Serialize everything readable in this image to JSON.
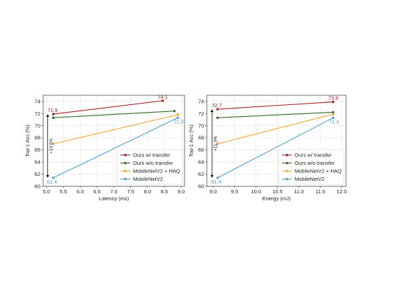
{
  "chart_data": [
    {
      "type": "line",
      "xlabel": "Latency (ms)",
      "ylabel": "Top-1 Acc (%)",
      "xlim": [
        4.9,
        9.1
      ],
      "ylim": [
        60,
        75
      ],
      "xticks": [
        "5.0",
        "5.5",
        "6.0",
        "6.5",
        "7.0",
        "7.5",
        "8.0",
        "8.5",
        "9.0"
      ],
      "yticks": [
        "60",
        "62",
        "64",
        "66",
        "68",
        "70",
        "72",
        "74"
      ],
      "grid": true,
      "legend": "lower-right",
      "series": [
        {
          "name": "Ours w/ transfer",
          "color": "#a31f1f",
          "x": [
            5.2,
            8.45
          ],
          "y": [
            71.9,
            74.1
          ]
        },
        {
          "name": "Ours w/o transfer",
          "color": "#2e6b1f",
          "x": [
            5.2,
            8.8
          ],
          "y": [
            71.3,
            72.4
          ]
        },
        {
          "name": "MobileNetV2 + HAQ",
          "color": "#f0a431",
          "x": [
            5.2,
            8.9
          ],
          "y": [
            67.0,
            71.8
          ]
        },
        {
          "name": "MobileNetV2",
          "color": "#4a9fd5",
          "x": [
            5.2,
            8.9
          ],
          "y": [
            61.4,
            71.3
          ]
        }
      ],
      "annotations": {
        "top_label": "71.9",
        "end_label": "74.1",
        "low_label": "61.4",
        "right_label": "71.3",
        "gap_label": "+10.5%"
      }
    },
    {
      "type": "line",
      "xlabel": "Energy (mJ)",
      "ylabel": "Top-1 Acc (%)",
      "xlim": [
        8.85,
        12.1
      ],
      "ylim": [
        60,
        75
      ],
      "xticks": [
        "9.0",
        "9.5",
        "10.0",
        "10.5",
        "11.0",
        "11.5",
        "12.0"
      ],
      "yticks": [
        "60",
        "62",
        "64",
        "66",
        "68",
        "70",
        "72",
        "74"
      ],
      "grid": true,
      "legend": "lower-right",
      "series": [
        {
          "name": "Ours w/ transfer",
          "color": "#a31f1f",
          "x": [
            9.1,
            11.8
          ],
          "y": [
            72.7,
            73.9
          ]
        },
        {
          "name": "Ours w/o transfer",
          "color": "#2e6b1f",
          "x": [
            9.1,
            11.8
          ],
          "y": [
            71.3,
            72.2
          ]
        },
        {
          "name": "MobileNetV2 + HAQ",
          "color": "#f0a431",
          "x": [
            9.1,
            11.8
          ],
          "y": [
            67.0,
            71.9
          ]
        },
        {
          "name": "MobileNetV2",
          "color": "#4a9fd5",
          "x": [
            9.1,
            11.8
          ],
          "y": [
            61.4,
            71.3
          ]
        }
      ],
      "annotations": {
        "top_label": "72.7",
        "end_label": "73.9",
        "low_label": "61.4",
        "right_label": "71.3",
        "gap_label": "+11.3%"
      }
    }
  ]
}
